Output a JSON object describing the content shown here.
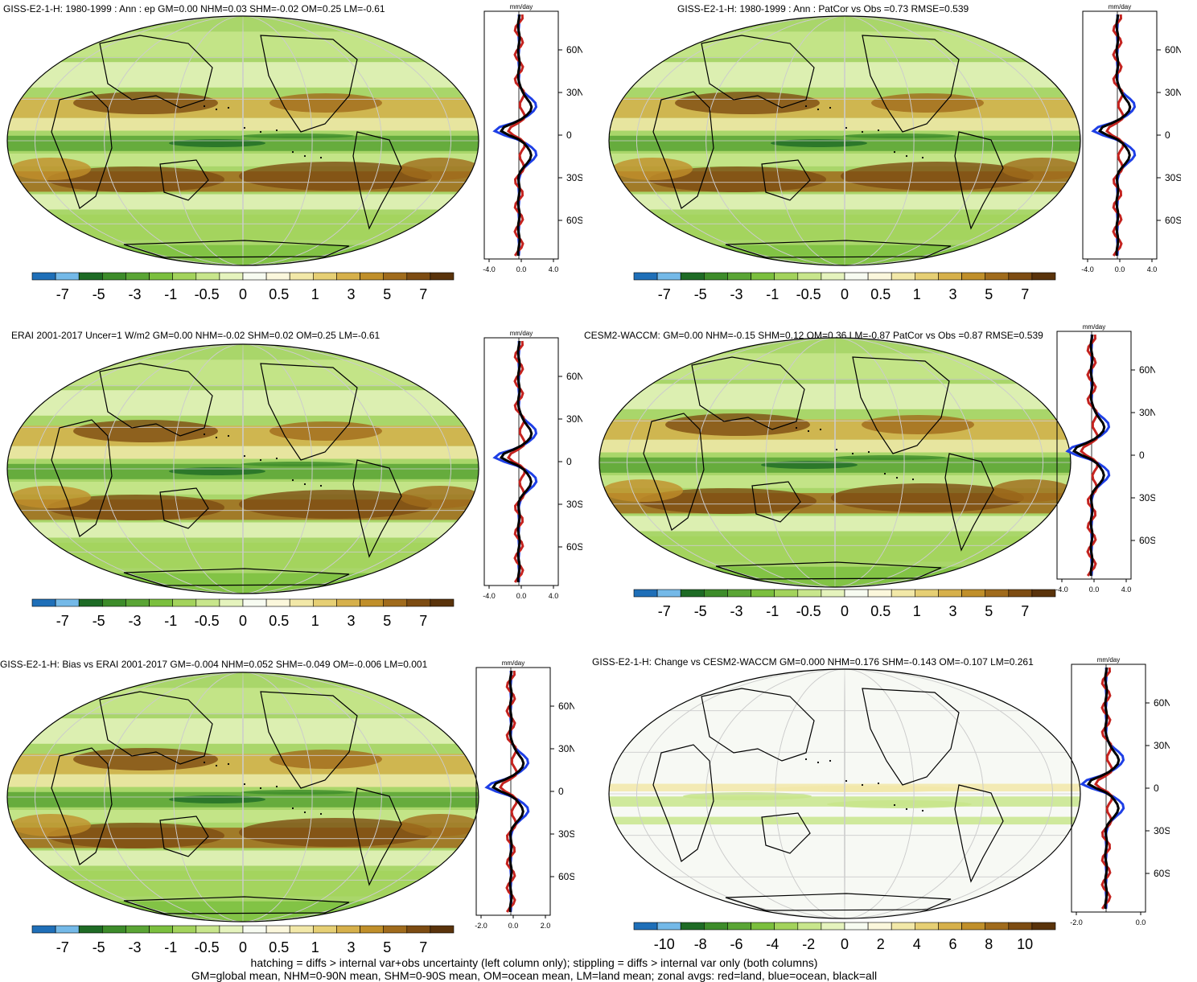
{
  "palette": {
    "levels12": [
      "#1f6fb8",
      "#74b9e8",
      "#1e6b25",
      "#3d8c2a",
      "#5aa535",
      "#7bbf3e",
      "#a3d35c",
      "#c8e68c",
      "#e5f3bd",
      "#f7fbf1",
      "#fbf7dc",
      "#f2e8a8",
      "#e6cf74",
      "#d6b04b",
      "#c08f2a",
      "#a06b1c",
      "#7d4c12",
      "#5a330b"
    ],
    "land": "#c4231f",
    "ocean": "#1e3fe6",
    "all": "#000000"
  },
  "ticks_mm": [
    "-7",
    "-5",
    "-3",
    "-1",
    "-0.5",
    "0",
    "0.5",
    "1",
    "3",
    "5",
    "7"
  ],
  "ticks_change": [
    "-10",
    "-8",
    "-6",
    "-4",
    "-2",
    "0",
    "2",
    "4",
    "6",
    "8",
    "10"
  ],
  "panels": [
    {
      "title": "GISS-E2-1-H: 1980-1999 : Ann : ep GM=0.00 NHM=0.03 SHM=-0.02 OM=0.25 LM=-0.61",
      "zonal_units": "mm/day",
      "zonal_xticks": [
        "-4.0",
        "0.0",
        "4.0"
      ],
      "lat_labels": [
        "60N",
        "30N",
        "0",
        "30S",
        "60S"
      ]
    },
    {
      "title": "GISS-E2-1-H: 1980-1999 : Ann : PatCor vs Obs =0.73 RMSE=0.539",
      "zonal_units": "mm/day",
      "zonal_xticks": [
        "-4.0",
        "0.0",
        "4.0"
      ],
      "lat_labels": [
        "60N",
        "30N",
        "0",
        "30S",
        "60S"
      ]
    },
    {
      "title": "ERAI 2001-2017 Uncer=1 W/m2 GM=0.00 NHM=-0.02 SHM=0.02 OM=0.25 LM=-0.61",
      "zonal_units": "mm/day",
      "zonal_xticks": [
        "-4.0",
        "0.0",
        "4.0"
      ],
      "lat_labels": [
        "60N",
        "30N",
        "0",
        "30S",
        "60S"
      ]
    },
    {
      "title": "CESM2-WACCM: GM=0.00 NHM=-0.15 SHM=0.12 OM=0.36 LM=-0.87 PatCor vs Obs =0.87 RMSE=0.539",
      "zonal_units": "mm/day",
      "zonal_xticks": [
        "-4.0",
        "0.0",
        "4.0"
      ],
      "lat_labels": [
        "60N",
        "30N",
        "0",
        "30S",
        "60S"
      ]
    },
    {
      "title": "GISS-E2-1-H: Bias vs ERAI 2001-2017 GM=-0.004 NHM=0.052 SHM=-0.049 OM=-0.006 LM=0.001",
      "zonal_units": "mm/day",
      "zonal_xticks": [
        "-2.0",
        "0.0",
        "2.0"
      ],
      "lat_labels": [
        "60N",
        "30N",
        "0",
        "30S",
        "60S"
      ]
    },
    {
      "title": "GISS-E2-1-H: Change vs CESM2-WACCM GM=0.000 NHM=0.176 SHM=-0.143 OM=-0.107 LM=0.261",
      "zonal_units": "mm/day",
      "zonal_xticks": [
        "-2.0",
        "0.0"
      ],
      "lat_labels": [
        "60N",
        "30N",
        "0",
        "30S",
        "60S"
      ]
    }
  ],
  "footer": {
    "line1": "hatching = diffs > internal var+obs uncertainty (left column only); stippling = diffs > internal var only (both columns)",
    "line2": "GM=global mean, NHM=0-90N mean, SHM=0-90S mean, OM=ocean mean, LM=land mean; zonal avgs: red=land, blue=ocean, black=all"
  },
  "chart_data": [
    {
      "type": "heatmap",
      "title": "GISS-E2-1-H: 1980-1999 : Ann : ep GM=0.00 NHM=0.03 SHM=-0.02 OM=0.25 LM=-0.61",
      "colorbar_ticks": [
        "-7",
        "-5",
        "-3",
        "-1",
        "-0.5",
        "0",
        "0.5",
        "1",
        "3",
        "5",
        "7"
      ]
    },
    {
      "type": "heatmap",
      "title": "GISS-E2-1-H: 1980-1999 : Ann : PatCor vs Obs =0.73 RMSE=0.539",
      "colorbar_ticks": [
        "-7",
        "-5",
        "-3",
        "-1",
        "-0.5",
        "0",
        "0.5",
        "1",
        "3",
        "5",
        "7"
      ]
    },
    {
      "type": "heatmap",
      "title": "ERAI 2001-2017 Uncer=1 W/m2 GM=0.00 NHM=-0.02 SHM=0.02 OM=0.25 LM=-0.61",
      "colorbar_ticks": [
        "-7",
        "-5",
        "-3",
        "-1",
        "-0.5",
        "0",
        "0.5",
        "1",
        "3",
        "5",
        "7"
      ]
    },
    {
      "type": "heatmap",
      "title": "CESM2-WACCM: GM=0.00 NHM=-0.15 SHM=0.12 OM=0.36 LM=-0.87 PatCor vs Obs =0.87 RMSE=0.539",
      "colorbar_ticks": [
        "-7",
        "-5",
        "-3",
        "-1",
        "-0.5",
        "0",
        "0.5",
        "1",
        "3",
        "5",
        "7"
      ]
    },
    {
      "type": "heatmap",
      "title": "GISS-E2-1-H: Bias vs ERAI 2001-2017 GM=-0.004 NHM=0.052 SHM=-0.049 OM=-0.006 LM=0.001",
      "colorbar_ticks": [
        "-7",
        "-5",
        "-3",
        "-1",
        "-0.5",
        "0",
        "0.5",
        "1",
        "3",
        "5",
        "7"
      ]
    },
    {
      "type": "heatmap",
      "title": "GISS-E2-1-H: Change vs CESM2-WACCM GM=0.000 NHM=0.176 SHM=-0.143 OM=-0.107 LM=0.261",
      "colorbar_ticks": [
        "-10",
        "-8",
        "-6",
        "-4",
        "-2",
        "0",
        "2",
        "4",
        "6",
        "8",
        "10"
      ]
    }
  ]
}
